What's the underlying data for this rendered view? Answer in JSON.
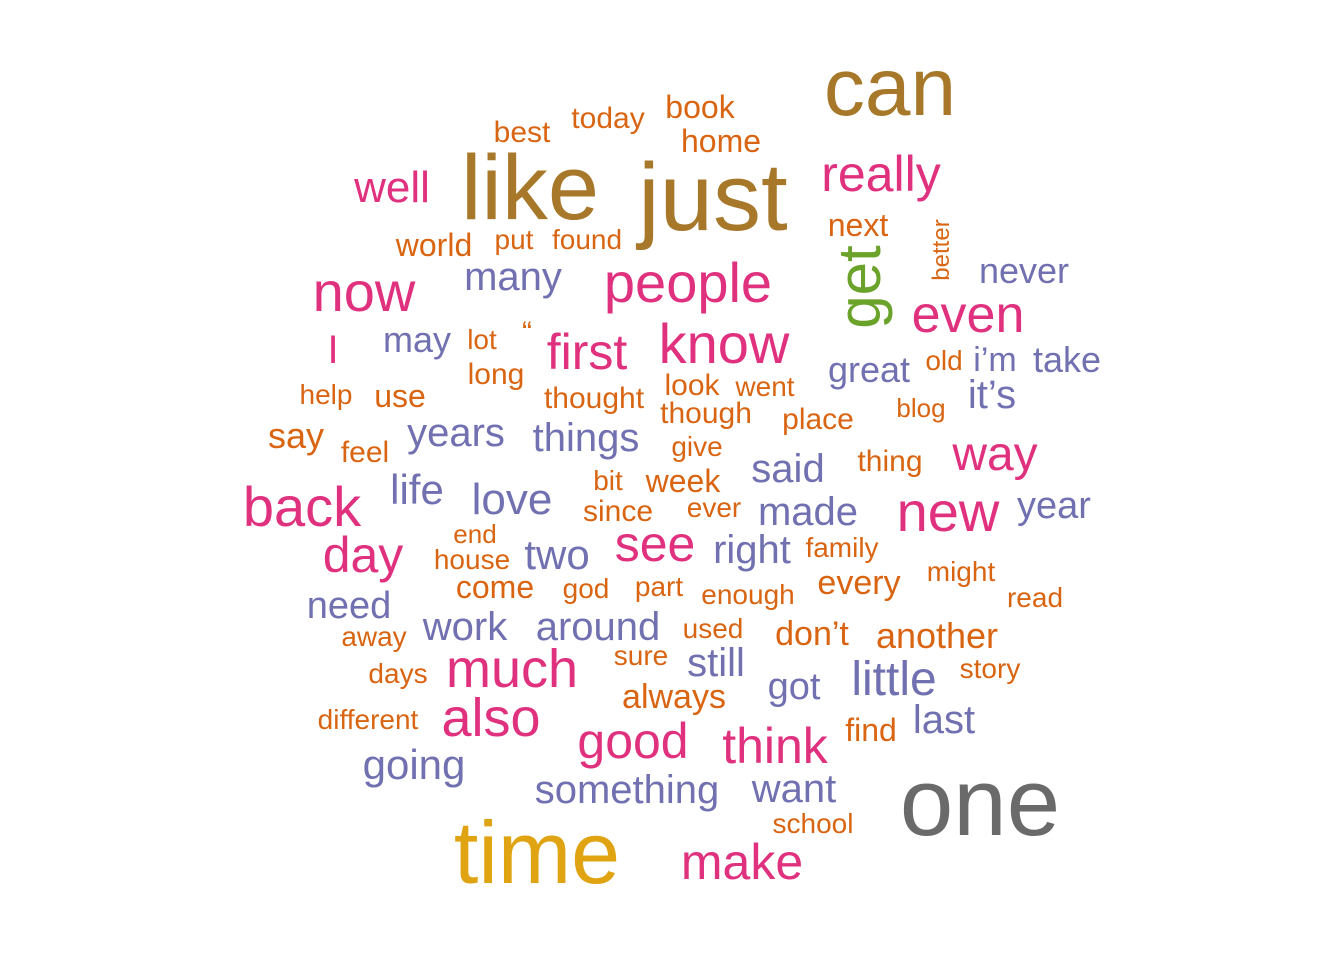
{
  "colors": {
    "gold_brown": "#a8782a",
    "pink": "#e0317f",
    "purple": "#7170b0",
    "orange": "#d96512",
    "green": "#6aa22a",
    "grey": "#6a6a6a",
    "mustard": "#e0a412"
  },
  "words": [
    {
      "text": "can",
      "color": "gold_brown"
    },
    {
      "text": "like",
      "color": "gold_brown"
    },
    {
      "text": "just",
      "color": "gold_brown"
    },
    {
      "text": "one",
      "color": "grey"
    },
    {
      "text": "time",
      "color": "mustard"
    },
    {
      "text": "get",
      "color": "green"
    },
    {
      "text": "really",
      "color": "pink"
    },
    {
      "text": "well",
      "color": "pink"
    },
    {
      "text": "people",
      "color": "pink"
    },
    {
      "text": "now",
      "color": "pink"
    },
    {
      "text": "know",
      "color": "pink"
    },
    {
      "text": "even",
      "color": "pink"
    },
    {
      "text": "first",
      "color": "pink"
    },
    {
      "text": "I",
      "color": "pink"
    },
    {
      "text": "way",
      "color": "pink"
    },
    {
      "text": "back",
      "color": "pink"
    },
    {
      "text": "new",
      "color": "pink"
    },
    {
      "text": "day",
      "color": "pink"
    },
    {
      "text": "see",
      "color": "pink"
    },
    {
      "text": "much",
      "color": "pink"
    },
    {
      "text": "also",
      "color": "pink"
    },
    {
      "text": "good",
      "color": "pink"
    },
    {
      "text": "think",
      "color": "pink"
    },
    {
      "text": "make",
      "color": "pink"
    },
    {
      "text": "many",
      "color": "purple"
    },
    {
      "text": "never",
      "color": "purple"
    },
    {
      "text": "may",
      "color": "purple"
    },
    {
      "text": "i’m",
      "color": "purple"
    },
    {
      "text": "take",
      "color": "purple"
    },
    {
      "text": "great",
      "color": "purple"
    },
    {
      "text": "it’s",
      "color": "purple"
    },
    {
      "text": "years",
      "color": "purple"
    },
    {
      "text": "things",
      "color": "purple"
    },
    {
      "text": "said",
      "color": "purple"
    },
    {
      "text": "life",
      "color": "purple"
    },
    {
      "text": "love",
      "color": "purple"
    },
    {
      "text": "made",
      "color": "purple"
    },
    {
      "text": "year",
      "color": "purple"
    },
    {
      "text": "two",
      "color": "purple"
    },
    {
      "text": "right",
      "color": "purple"
    },
    {
      "text": "need",
      "color": "purple"
    },
    {
      "text": "work",
      "color": "purple"
    },
    {
      "text": "around",
      "color": "purple"
    },
    {
      "text": "still",
      "color": "purple"
    },
    {
      "text": "got",
      "color": "purple"
    },
    {
      "text": "little",
      "color": "purple"
    },
    {
      "text": "last",
      "color": "purple"
    },
    {
      "text": "going",
      "color": "purple"
    },
    {
      "text": "something",
      "color": "purple"
    },
    {
      "text": "want",
      "color": "purple"
    },
    {
      "text": "book",
      "color": "orange"
    },
    {
      "text": "today",
      "color": "orange"
    },
    {
      "text": "best",
      "color": "orange"
    },
    {
      "text": "home",
      "color": "orange"
    },
    {
      "text": "next",
      "color": "orange"
    },
    {
      "text": "better",
      "color": "orange"
    },
    {
      "text": "world",
      "color": "orange"
    },
    {
      "text": "put",
      "color": "orange"
    },
    {
      "text": "found",
      "color": "orange"
    },
    {
      "text": "lot",
      "color": "orange"
    },
    {
      "text": "“",
      "color": "orange"
    },
    {
      "text": "long",
      "color": "orange"
    },
    {
      "text": "old",
      "color": "orange"
    },
    {
      "text": "help",
      "color": "orange"
    },
    {
      "text": "use",
      "color": "orange"
    },
    {
      "text": "thought",
      "color": "orange"
    },
    {
      "text": "look",
      "color": "orange"
    },
    {
      "text": "went",
      "color": "orange"
    },
    {
      "text": "though",
      "color": "orange"
    },
    {
      "text": "place",
      "color": "orange"
    },
    {
      "text": "blog",
      "color": "orange"
    },
    {
      "text": "say",
      "color": "orange"
    },
    {
      "text": "feel",
      "color": "orange"
    },
    {
      "text": "give",
      "color": "orange"
    },
    {
      "text": "thing",
      "color": "orange"
    },
    {
      "text": "bit",
      "color": "orange"
    },
    {
      "text": "week",
      "color": "orange"
    },
    {
      "text": "since",
      "color": "orange"
    },
    {
      "text": "ever",
      "color": "orange"
    },
    {
      "text": "end",
      "color": "orange"
    },
    {
      "text": "house",
      "color": "orange"
    },
    {
      "text": "family",
      "color": "orange"
    },
    {
      "text": "come",
      "color": "orange"
    },
    {
      "text": "god",
      "color": "orange"
    },
    {
      "text": "part",
      "color": "orange"
    },
    {
      "text": "enough",
      "color": "orange"
    },
    {
      "text": "every",
      "color": "orange"
    },
    {
      "text": "might",
      "color": "orange"
    },
    {
      "text": "read",
      "color": "orange"
    },
    {
      "text": "away",
      "color": "orange"
    },
    {
      "text": "used",
      "color": "orange"
    },
    {
      "text": "don’t",
      "color": "orange"
    },
    {
      "text": "another",
      "color": "orange"
    },
    {
      "text": "sure",
      "color": "orange"
    },
    {
      "text": "days",
      "color": "orange"
    },
    {
      "text": "story",
      "color": "orange"
    },
    {
      "text": "always",
      "color": "orange"
    },
    {
      "text": "different",
      "color": "orange"
    },
    {
      "text": "find",
      "color": "orange"
    },
    {
      "text": "school",
      "color": "orange"
    }
  ]
}
